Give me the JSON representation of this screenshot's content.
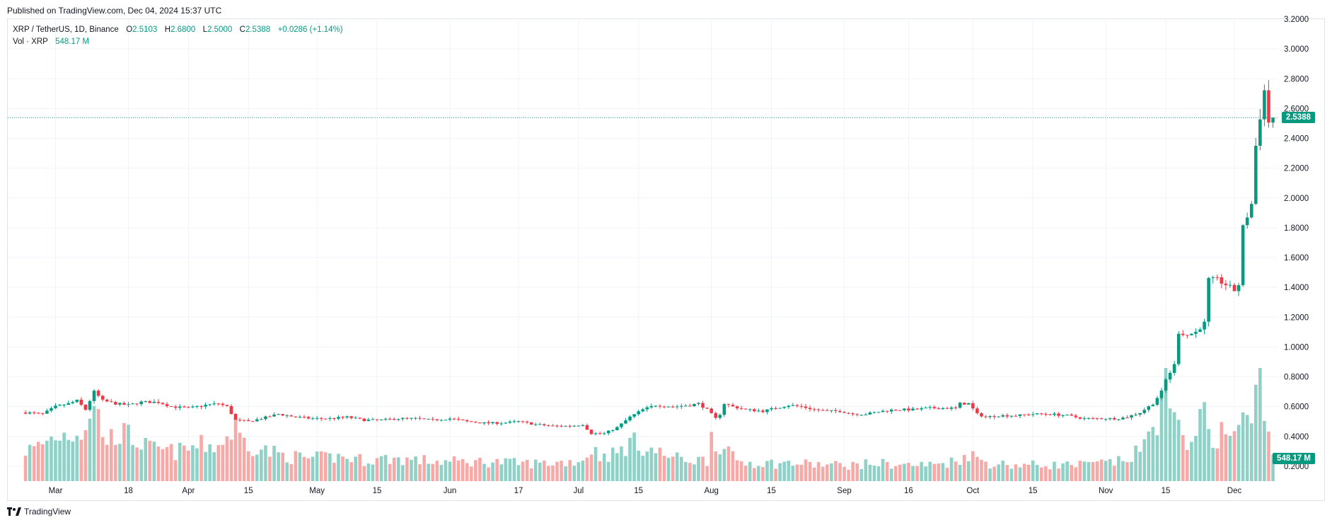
{
  "header": {
    "published": "Published on TradingView.com, Dec 04, 2024 15:37 UTC"
  },
  "legend": {
    "symbol": "XRP / TetherUS, 1D, Binance",
    "o_label": "O",
    "o_value": "2.5103",
    "h_label": "H",
    "h_value": "2.6800",
    "l_label": "L",
    "l_value": "2.5000",
    "c_label": "C",
    "c_value": "2.5388",
    "change": "+0.0286 (+1.14%)",
    "vol_label": "Vol · XRP",
    "vol_value": "548.17 M"
  },
  "footer": {
    "brand": "TradingView"
  },
  "price_tag": "2.5388",
  "volume_tag": "548.17 M",
  "colors": {
    "up": "#089981",
    "down": "#f23645",
    "vol_up": "#8fd1c6",
    "vol_down": "#f7a9a7",
    "grid": "#f0f3fa"
  },
  "chart_data": {
    "type": "candlestick",
    "title": "XRP / TetherUS, 1D, Binance",
    "y_ticks": [
      "0.2000",
      "0.4000",
      "0.6000",
      "0.8000",
      "1.0000",
      "1.2000",
      "1.4000",
      "1.6000",
      "1.8000",
      "2.0000",
      "2.2000",
      "2.4000",
      "2.6000",
      "2.8000",
      "3.0000",
      "3.2000"
    ],
    "ylim": [
      0.1,
      3.2
    ],
    "x_ticks": [
      {
        "label": "Mar",
        "day": 0
      },
      {
        "label": "18",
        "day": 17
      },
      {
        "label": "Apr",
        "day": 31
      },
      {
        "label": "15",
        "day": 45
      },
      {
        "label": "May",
        "day": 61
      },
      {
        "label": "15",
        "day": 75
      },
      {
        "label": "Jun",
        "day": 92
      },
      {
        "label": "17",
        "day": 108
      },
      {
        "label": "Jul",
        "day": 122
      },
      {
        "label": "15",
        "day": 136
      },
      {
        "label": "Aug",
        "day": 153
      },
      {
        "label": "15",
        "day": 167
      },
      {
        "label": "Sep",
        "day": 184
      },
      {
        "label": "16",
        "day": 199
      },
      {
        "label": "Oct",
        "day": 214
      },
      {
        "label": "15",
        "day": 228
      },
      {
        "label": "Nov",
        "day": 245
      },
      {
        "label": "15",
        "day": 259
      },
      {
        "label": "Dec",
        "day": 275
      }
    ],
    "last_price": 2.5388,
    "price_anchors": [
      [
        -7,
        0.56
      ],
      [
        -3,
        0.55
      ],
      [
        0,
        0.6
      ],
      [
        3,
        0.62
      ],
      [
        5,
        0.64
      ],
      [
        7,
        0.58
      ],
      [
        9,
        0.7
      ],
      [
        11,
        0.64
      ],
      [
        14,
        0.62
      ],
      [
        17,
        0.61
      ],
      [
        20,
        0.63
      ],
      [
        24,
        0.63
      ],
      [
        27,
        0.6
      ],
      [
        31,
        0.59
      ],
      [
        35,
        0.61
      ],
      [
        38,
        0.62
      ],
      [
        40,
        0.6
      ],
      [
        42,
        0.51
      ],
      [
        45,
        0.5
      ],
      [
        48,
        0.52
      ],
      [
        52,
        0.55
      ],
      [
        56,
        0.53
      ],
      [
        60,
        0.52
      ],
      [
        64,
        0.52
      ],
      [
        68,
        0.53
      ],
      [
        72,
        0.51
      ],
      [
        76,
        0.51
      ],
      [
        80,
        0.52
      ],
      [
        84,
        0.52
      ],
      [
        88,
        0.51
      ],
      [
        92,
        0.52
      ],
      [
        96,
        0.5
      ],
      [
        100,
        0.49
      ],
      [
        104,
        0.49
      ],
      [
        108,
        0.5
      ],
      [
        112,
        0.48
      ],
      [
        116,
        0.47
      ],
      [
        120,
        0.47
      ],
      [
        123,
        0.48
      ],
      [
        125,
        0.42
      ],
      [
        128,
        0.42
      ],
      [
        131,
        0.46
      ],
      [
        134,
        0.53
      ],
      [
        137,
        0.58
      ],
      [
        140,
        0.61
      ],
      [
        144,
        0.6
      ],
      [
        148,
        0.61
      ],
      [
        150,
        0.62
      ],
      [
        152,
        0.58
      ],
      [
        154,
        0.52
      ],
      [
        155,
        0.55
      ],
      [
        156,
        0.62
      ],
      [
        158,
        0.6
      ],
      [
        161,
        0.58
      ],
      [
        165,
        0.57
      ],
      [
        168,
        0.59
      ],
      [
        171,
        0.61
      ],
      [
        174,
        0.6
      ],
      [
        177,
        0.58
      ],
      [
        180,
        0.57
      ],
      [
        183,
        0.57
      ],
      [
        186,
        0.55
      ],
      [
        189,
        0.55
      ],
      [
        193,
        0.57
      ],
      [
        196,
        0.58
      ],
      [
        200,
        0.58
      ],
      [
        204,
        0.59
      ],
      [
        207,
        0.59
      ],
      [
        210,
        0.59
      ],
      [
        211,
        0.62
      ],
      [
        213,
        0.62
      ],
      [
        215,
        0.55
      ],
      [
        217,
        0.53
      ],
      [
        220,
        0.54
      ],
      [
        224,
        0.54
      ],
      [
        228,
        0.55
      ],
      [
        232,
        0.55
      ],
      [
        236,
        0.54
      ],
      [
        240,
        0.52
      ],
      [
        244,
        0.52
      ],
      [
        248,
        0.52
      ],
      [
        250,
        0.53
      ],
      [
        253,
        0.56
      ],
      [
        256,
        0.62
      ],
      [
        258,
        0.7
      ],
      [
        259,
        0.78
      ],
      [
        261,
        0.88
      ],
      [
        262,
        1.1
      ],
      [
        264,
        1.08
      ],
      [
        266,
        1.1
      ],
      [
        268,
        1.16
      ],
      [
        269,
        1.45
      ],
      [
        271,
        1.45
      ],
      [
        273,
        1.42
      ],
      [
        275,
        1.38
      ],
      [
        276,
        1.42
      ],
      [
        277,
        1.8
      ],
      [
        279,
        1.96
      ],
      [
        280,
        2.35
      ],
      [
        281,
        2.55
      ],
      [
        282,
        2.72
      ],
      [
        283,
        2.51
      ],
      [
        284,
        2.5388
      ]
    ],
    "volume_anchors": [
      [
        -7,
        0.19
      ],
      [
        -5,
        0.2
      ],
      [
        0,
        0.28
      ],
      [
        4,
        0.3
      ],
      [
        7,
        0.33
      ],
      [
        8,
        0.46
      ],
      [
        10,
        0.4
      ],
      [
        12,
        0.24
      ],
      [
        14,
        0.3
      ],
      [
        17,
        0.28
      ],
      [
        22,
        0.2
      ],
      [
        28,
        0.18
      ],
      [
        34,
        0.22
      ],
      [
        38,
        0.22
      ],
      [
        40,
        0.27
      ],
      [
        42,
        0.34
      ],
      [
        43,
        0.27
      ],
      [
        46,
        0.22
      ],
      [
        50,
        0.18
      ],
      [
        55,
        0.15
      ],
      [
        60,
        0.14
      ],
      [
        66,
        0.15
      ],
      [
        72,
        0.13
      ],
      [
        78,
        0.14
      ],
      [
        84,
        0.13
      ],
      [
        90,
        0.12
      ],
      [
        96,
        0.12
      ],
      [
        102,
        0.12
      ],
      [
        108,
        0.11
      ],
      [
        114,
        0.11
      ],
      [
        120,
        0.12
      ],
      [
        123,
        0.13
      ],
      [
        125,
        0.2
      ],
      [
        127,
        0.16
      ],
      [
        131,
        0.17
      ],
      [
        134,
        0.24
      ],
      [
        137,
        0.22
      ],
      [
        140,
        0.18
      ],
      [
        145,
        0.14
      ],
      [
        150,
        0.13
      ],
      [
        152,
        0.13
      ],
      [
        153,
        0.3
      ],
      [
        154,
        0.26
      ],
      [
        156,
        0.18
      ],
      [
        160,
        0.12
      ],
      [
        166,
        0.11
      ],
      [
        172,
        0.11
      ],
      [
        180,
        0.1
      ],
      [
        186,
        0.1
      ],
      [
        192,
        0.11
      ],
      [
        198,
        0.1
      ],
      [
        204,
        0.1
      ],
      [
        209,
        0.12
      ],
      [
        211,
        0.14
      ],
      [
        213,
        0.17
      ],
      [
        215,
        0.14
      ],
      [
        218,
        0.11
      ],
      [
        224,
        0.1
      ],
      [
        230,
        0.1
      ],
      [
        236,
        0.1
      ],
      [
        240,
        0.1
      ],
      [
        244,
        0.11
      ],
      [
        248,
        0.12
      ],
      [
        251,
        0.15
      ],
      [
        253,
        0.19
      ],
      [
        255,
        0.27
      ],
      [
        256,
        0.34
      ],
      [
        257,
        0.4
      ],
      [
        258,
        0.55
      ],
      [
        259,
        0.62
      ],
      [
        260,
        0.4
      ],
      [
        262,
        0.3
      ],
      [
        264,
        0.26
      ],
      [
        266,
        0.34
      ],
      [
        268,
        0.38
      ],
      [
        270,
        0.26
      ],
      [
        272,
        0.3
      ],
      [
        274,
        0.28
      ],
      [
        276,
        0.34
      ],
      [
        277,
        0.36
      ],
      [
        279,
        0.38
      ],
      [
        280,
        0.5
      ],
      [
        281,
        0.7
      ],
      [
        282,
        0.53
      ],
      [
        283,
        0.27
      ],
      [
        284,
        0.17
      ]
    ],
    "volume_scale_max": 0.7
  }
}
